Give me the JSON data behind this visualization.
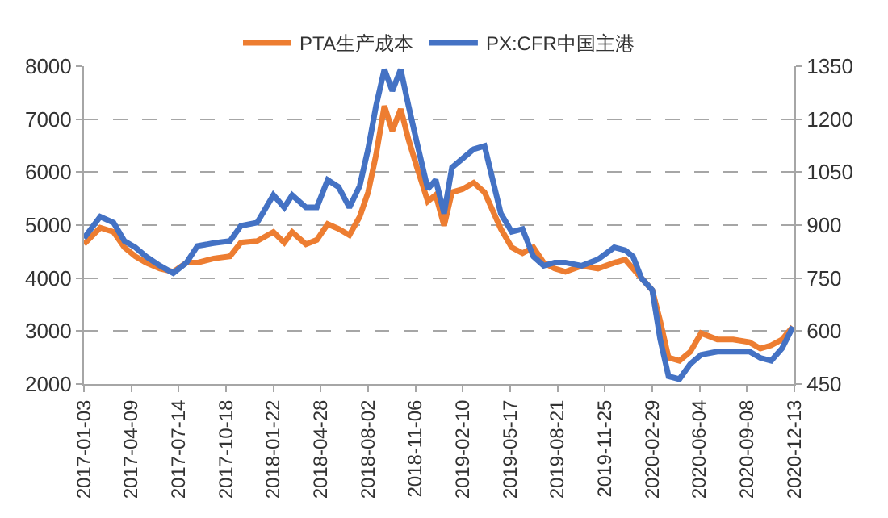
{
  "chart_data": {
    "type": "line",
    "legend": "top",
    "grid": "y",
    "line_style": "solid",
    "marker": "none",
    "x": [
      "2017-01-03",
      "2017-02-05",
      "2017-03-04",
      "2017-03-26",
      "2017-04-17",
      "2017-05-09",
      "2017-06-06",
      "2017-07-03",
      "2017-07-30",
      "2017-08-21",
      "2017-09-23",
      "2017-10-26",
      "2017-11-17",
      "2017-12-20",
      "2018-01-22",
      "2018-02-13",
      "2018-03-01",
      "2018-03-29",
      "2018-04-20",
      "2018-05-12",
      "2018-06-03",
      "2018-06-25",
      "2018-07-16",
      "2018-08-02",
      "2018-08-18",
      "2018-09-04",
      "2018-09-20",
      "2018-10-07",
      "2018-10-23",
      "2018-11-09",
      "2018-12-01",
      "2018-12-17",
      "2019-01-03",
      "2019-01-19",
      "2019-02-10",
      "2019-03-04",
      "2019-03-26",
      "2019-04-28",
      "2019-05-20",
      "2019-06-11",
      "2019-07-03",
      "2019-07-24",
      "2019-08-15",
      "2019-09-06",
      "2019-10-09",
      "2019-11-11",
      "2019-12-14",
      "2020-01-05",
      "2020-01-21",
      "2020-02-07",
      "2020-02-29",
      "2020-03-16",
      "2020-04-02",
      "2020-04-24",
      "2020-05-16",
      "2020-06-07",
      "2020-07-10",
      "2020-08-11",
      "2020-09-13",
      "2020-10-05",
      "2020-10-27",
      "2020-11-18",
      "2020-12-10"
    ],
    "series": [
      {
        "name": "PTA生产成本",
        "color": "#ed7d31",
        "values": [
          4640,
          4950,
          4870,
          4580,
          4410,
          4290,
          4180,
          4120,
          4290,
          4290,
          4370,
          4410,
          4670,
          4700,
          4870,
          4670,
          4870,
          4640,
          4720,
          5020,
          4930,
          4810,
          5160,
          5620,
          6320,
          7250,
          6780,
          7190,
          6610,
          6090,
          5450,
          5570,
          4990,
          5620,
          5680,
          5800,
          5620,
          4930,
          4580,
          4470,
          4580,
          4290,
          4180,
          4120,
          4230,
          4180,
          4290,
          4350,
          4180,
          4000,
          3770,
          3190,
          2500,
          2440,
          2610,
          2960,
          2840,
          2840,
          2790,
          2670,
          2730,
          2840,
          3080
        ]
      },
      {
        "name": "PX:CFR中国主港",
        "color": "#4472c4",
        "axis": "y2",
        "values": [
          863,
          924,
          907,
          855,
          837,
          811,
          785,
          764,
          794,
          841,
          849,
          855,
          898,
          907,
          985,
          950,
          985,
          950,
          950,
          1028,
          1008,
          950,
          1011,
          1115,
          1237,
          1341,
          1280,
          1341,
          1237,
          1133,
          1002,
          1028,
          933,
          1063,
          1089,
          1115,
          1124,
          933,
          881,
          889,
          811,
          785,
          794,
          794,
          785,
          803,
          837,
          829,
          811,
          750,
          716,
          577,
          472,
          464,
          507,
          533,
          542,
          542,
          542,
          524,
          516,
          551,
          612
        ]
      }
    ],
    "xlim": [
      "2017-01-03",
      "2020-12-13"
    ],
    "xticks": [
      "2017-01-03",
      "2017-04-09",
      "2017-07-14",
      "2017-10-18",
      "2018-01-22",
      "2018-04-28",
      "2018-08-02",
      "2018-11-06",
      "2019-02-10",
      "2019-05-17",
      "2019-08-21",
      "2019-11-25",
      "2020-02-29",
      "2020-06-04",
      "2020-09-08",
      "2020-12-13"
    ],
    "ylim": [
      2000,
      8000
    ],
    "yticks": [
      2000,
      3000,
      4000,
      5000,
      6000,
      7000,
      8000
    ],
    "y2lim": [
      450,
      1350
    ],
    "y2ticks": [
      450,
      600,
      750,
      900,
      1050,
      1200,
      1350
    ]
  }
}
